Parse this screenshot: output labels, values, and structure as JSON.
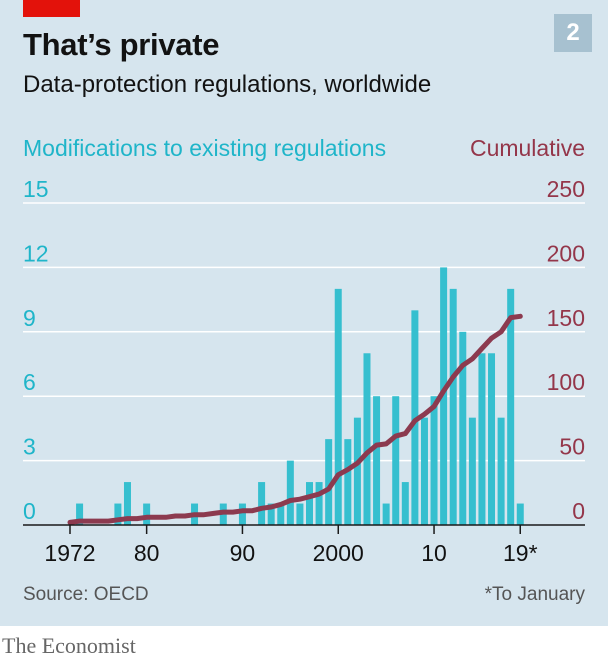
{
  "header": {
    "title": "That’s private",
    "subtitle": "Data-protection regulations, worldwide",
    "badge": "2"
  },
  "footer": {
    "source": "Source: OECD",
    "footnote": "*To January",
    "brand": "The Economist"
  },
  "colors": {
    "background": "#d6e5ee",
    "bars": "#36bfcf",
    "line": "#8c3a4f",
    "left_axis_text": "#1fb5c9",
    "right_axis_text": "#94364a",
    "accent_red": "#e3120b"
  },
  "chart_data": {
    "type": "bar",
    "x": [
      1972,
      1973,
      1974,
      1975,
      1976,
      1977,
      1978,
      1979,
      1980,
      1981,
      1982,
      1983,
      1984,
      1985,
      1986,
      1987,
      1988,
      1989,
      1990,
      1991,
      1992,
      1993,
      1994,
      1995,
      1996,
      1997,
      1998,
      1999,
      2000,
      2001,
      2002,
      2003,
      2004,
      2005,
      2006,
      2007,
      2008,
      2009,
      2010,
      2011,
      2012,
      2013,
      2014,
      2015,
      2016,
      2017,
      2018,
      2019
    ],
    "x_tick_values": [
      1972,
      1980,
      1990,
      2000,
      2010,
      2019
    ],
    "x_tick_labels": [
      "1972",
      "80",
      "90",
      "2000",
      "10",
      "19*"
    ],
    "series": [
      {
        "name": "Modifications to existing regulations",
        "type": "bar",
        "axis": "left",
        "values": [
          0,
          1,
          0,
          0,
          0,
          1,
          2,
          0,
          1,
          0,
          0,
          0,
          0,
          1,
          0,
          0,
          1,
          0,
          1,
          0,
          2,
          1,
          1,
          3,
          1,
          2,
          2,
          4,
          11,
          4,
          5,
          8,
          6,
          1,
          6,
          2,
          10,
          5,
          6,
          12,
          11,
          9,
          5,
          8,
          8,
          5,
          11,
          1
        ]
      },
      {
        "name": "Cumulative",
        "type": "line",
        "axis": "right",
        "values": [
          2,
          3,
          3,
          3,
          3,
          4,
          5,
          5,
          6,
          6,
          6,
          7,
          7,
          8,
          8,
          9,
          10,
          10,
          11,
          11,
          13,
          14,
          16,
          19,
          20,
          22,
          24,
          28,
          39,
          43,
          48,
          56,
          62,
          63,
          69,
          71,
          81,
          86,
          92,
          104,
          115,
          124,
          129,
          137,
          145,
          150,
          161,
          162
        ]
      }
    ],
    "left_axis": {
      "label": "Modifications to existing regulations",
      "ticks": [
        0,
        3,
        6,
        9,
        12,
        15
      ],
      "range": [
        0,
        15
      ]
    },
    "right_axis": {
      "label": "Cumulative",
      "ticks": [
        0,
        50,
        100,
        150,
        200,
        250
      ],
      "range": [
        0,
        250
      ]
    },
    "grid": "horizontal"
  }
}
